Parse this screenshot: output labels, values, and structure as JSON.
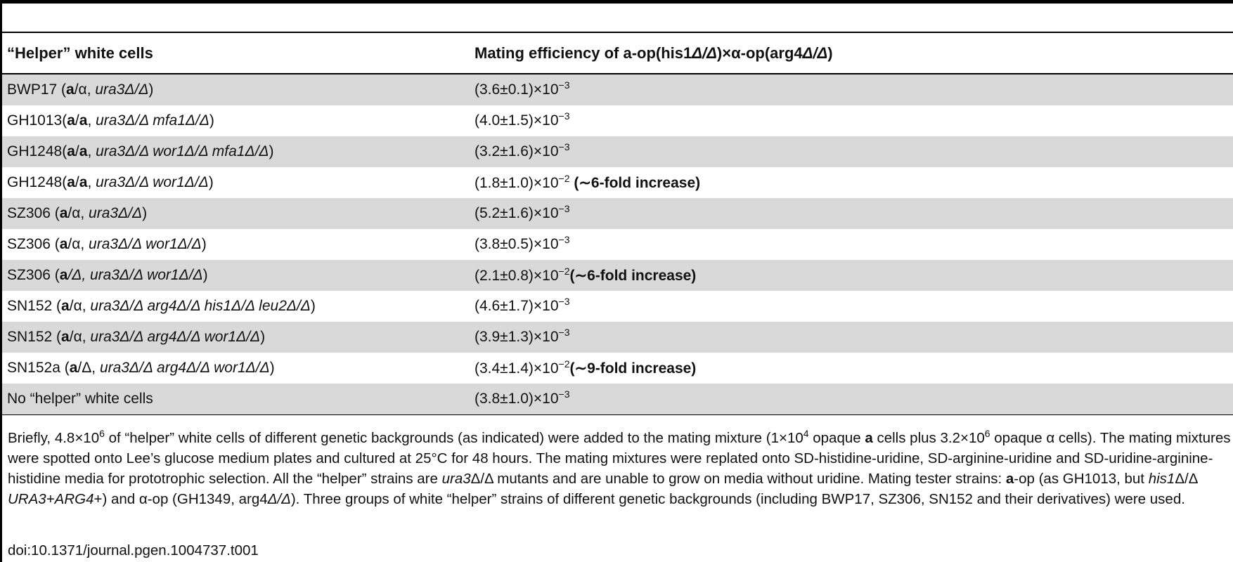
{
  "table": {
    "headers": {
      "col1": "“Helper” white cells",
      "col2": {
        "prefix": "Mating efficiency of a-op(his1",
        "d1": "Δ/Δ",
        "mid": ")×α-op(arg4",
        "d2": "Δ/Δ",
        "suffix": ")"
      }
    },
    "rows": [
      {
        "strain": "BWP17",
        "mt": "a",
        "mt2": "/α, ",
        "geno": "ura3Δ/Δ",
        "eff": "(3.6±0.1)×10",
        "exp": "−3",
        "note": ""
      },
      {
        "strain": "GH1013(",
        "mt": "a",
        "mt2": "/",
        "mt3": "a",
        "sep": ", ",
        "geno": "ura3Δ/Δ mfa1Δ/Δ",
        "eff": "(4.0±1.5)×10",
        "exp": "−3",
        "note": ""
      },
      {
        "strain": "GH1248(",
        "mt": "a",
        "mt2": "/",
        "mt3": "a",
        "sep": ", ",
        "geno": "ura3Δ/Δ wor1Δ/Δ mfa1Δ/Δ",
        "eff": "(3.2±1.6)×10",
        "exp": "−3",
        "note": ""
      },
      {
        "strain": "GH1248(",
        "mt": "a",
        "mt2": "/",
        "mt3": "a",
        "sep": ", ",
        "geno": "ura3Δ/Δ wor1Δ/Δ",
        "eff": "(1.8±1.0)×10",
        "exp": "−2",
        "note": " (∼6-fold increase)"
      },
      {
        "strain": "SZ306",
        "mt": "a",
        "mt2": "/α, ",
        "geno": "ura3Δ/Δ",
        "eff": "(5.2±1.6)×10",
        "exp": "−3",
        "note": ""
      },
      {
        "strain": "SZ306",
        "mt": "a",
        "mt2": "/α, ",
        "geno": "ura3Δ/Δ wor1Δ/Δ",
        "eff": "(3.8±0.5)×10",
        "exp": "−3",
        "note": ""
      },
      {
        "strain": "SZ306",
        "mt": "a",
        "mt2": "/Δ, ",
        "geno": "ura3Δ/Δ wor1Δ/Δ",
        "eff": "(2.1±0.8)×10",
        "exp": "−2",
        "note": "(∼6-fold increase)"
      },
      {
        "strain": "SN152",
        "mt": "a",
        "mt2": "/α, ",
        "geno": "ura3Δ/Δ arg4Δ/Δ his1Δ/Δ leu2Δ/Δ",
        "eff": "(4.6±1.7)×10",
        "exp": "−3",
        "note": ""
      },
      {
        "strain": "SN152",
        "mt": "a",
        "mt2": "/α, ",
        "geno": "ura3Δ/Δ arg4Δ/Δ wor1Δ/Δ",
        "eff": "(3.9±1.3)×10",
        "exp": "−3",
        "note": ""
      },
      {
        "strain": "SN152a",
        "mt": "a",
        "mt2": "/Δ, ",
        "geno": "ura3Δ/Δ arg4Δ/Δ wor1Δ/Δ",
        "eff": "(3.4±1.4)×10",
        "exp": "−2",
        "note": "(∼9-fold increase)"
      },
      {
        "strain": "No “helper” white cells",
        "eff": "(3.8±1.0)×10",
        "exp": "−3",
        "note": ""
      }
    ]
  },
  "footnote": {
    "s1": "Briefly, 4.8×10",
    "e1": "6",
    "s2": " of “helper” white cells of different genetic backgrounds (as indicated) were added to the mating mixture (1×10",
    "e2": "4",
    "s3": " opaque ",
    "b1": "a",
    "s4": " cells plus 3.2×10",
    "e3": "6",
    "s5": " opaque α cells). The mating mixtures were spotted onto Lee’s glucose medium plates and cultured at 25°C for 48 hours. The mating mixtures were replated onto SD-histidine-uridine, SD-arginine-uridine and SD-uridine-arginine-histidine media for prototrophic selection. All the “helper” strains are ",
    "i1": "ura3",
    "s6": "Δ/Δ mutants and are unable to grow on media without uridine. Mating tester strains: ",
    "b2": "a",
    "s7": "-op (as GH1013, but ",
    "i2": "his1",
    "s8": "Δ/Δ ",
    "i3": "URA3+ARG4",
    "s9": "+) and α-op (GH1349, arg4",
    "i4": "Δ/Δ",
    "s10": "). Three groups of white “helper” strains of different genetic backgrounds (including BWP17, SZ306, SN152 and their derivatives) were used."
  },
  "doi": "doi:10.1371/journal.pgen.1004737.t001"
}
